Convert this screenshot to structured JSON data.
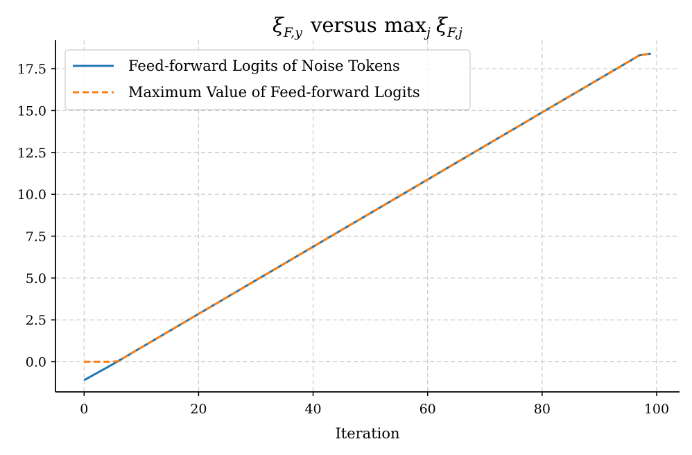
{
  "chart_data": {
    "type": "line",
    "title": "ξ_{F,y} versus max_j ξ_{F,j}",
    "title_parts": {
      "xi_1": "ξ",
      "sub_1": "F,y",
      "versus": "versus",
      "max": "max",
      "max_sub": "j",
      "xi_2": "ξ",
      "sub_2": "F,j"
    },
    "xlabel": "Iteration",
    "ylabel": "",
    "xlim": [
      -5,
      104
    ],
    "ylim": [
      -1.8,
      19.2
    ],
    "xticks": [
      0,
      20,
      40,
      60,
      80,
      100
    ],
    "xtick_labels": [
      "0",
      "20",
      "40",
      "60",
      "80",
      "100"
    ],
    "yticks": [
      0.0,
      2.5,
      5.0,
      7.5,
      10.0,
      12.5,
      15.0,
      17.5
    ],
    "ytick_labels": [
      "0.0",
      "2.5",
      "5.0",
      "7.5",
      "10.0",
      "12.5",
      "15.0",
      "17.5"
    ],
    "grid": true,
    "legend_position": "top-left",
    "series": [
      {
        "name": "Feed-forward Logits of Noise Tokens",
        "color": "#1f77b4",
        "style": "solid",
        "x": [
          0,
          5,
          6,
          97,
          99
        ],
        "y": [
          -1.1,
          -0.15,
          0.05,
          18.3,
          18.4
        ]
      },
      {
        "name": "Maximum Value of Feed-forward Logits",
        "color": "#ff7f0e",
        "style": "dashed",
        "x": [
          0,
          5,
          6,
          97,
          99
        ],
        "y": [
          0.0,
          0.0,
          0.05,
          18.3,
          18.4
        ]
      }
    ]
  }
}
